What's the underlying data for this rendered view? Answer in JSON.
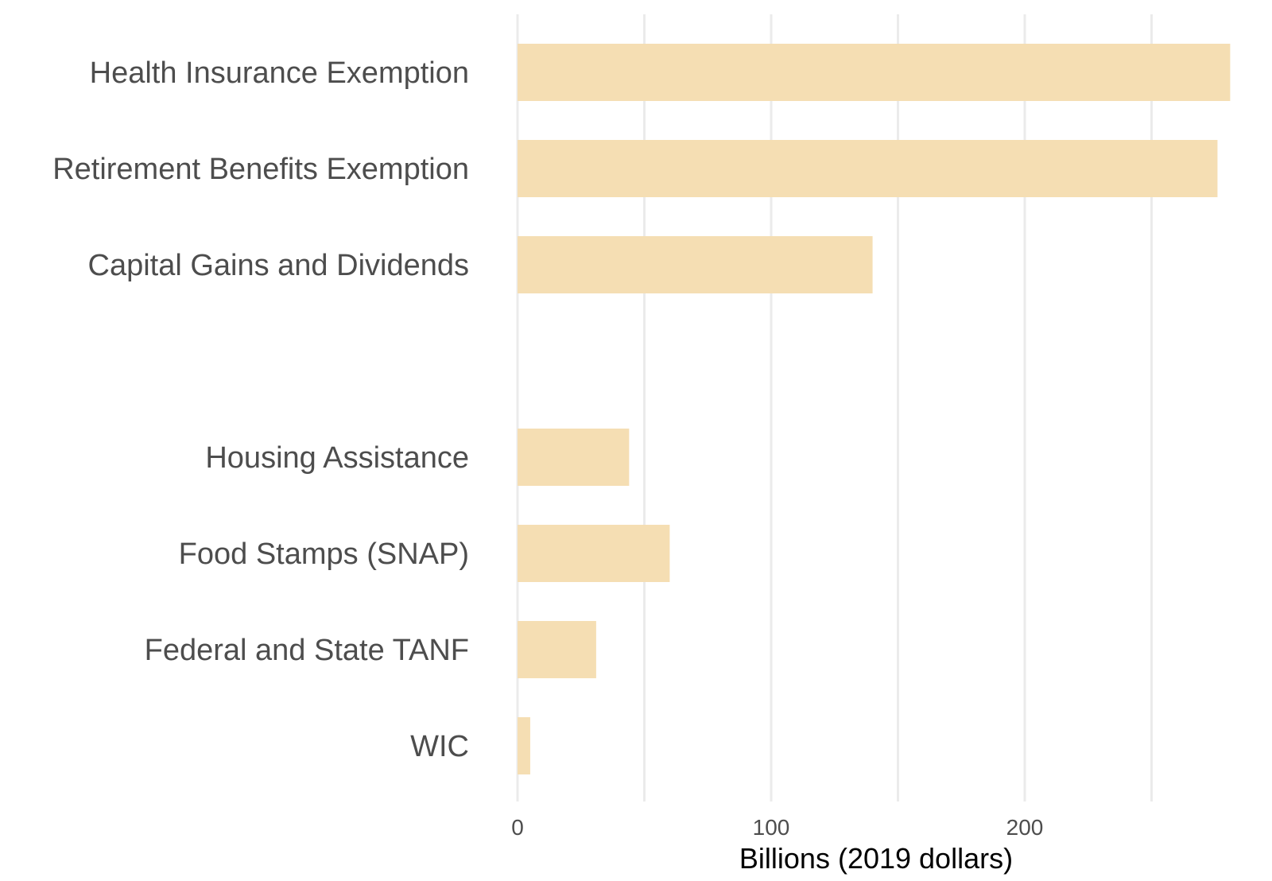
{
  "chart_data": {
    "type": "bar",
    "orientation": "horizontal",
    "title": "",
    "xlabel": "Billions (2019 dollars)",
    "ylabel": "",
    "xlim": [
      0,
      285
    ],
    "x_ticks": [
      0,
      100,
      200
    ],
    "x_tick_labels": [
      "0",
      "100",
      "200"
    ],
    "minor_gridlines": [
      50,
      150,
      250
    ],
    "grid": true,
    "legend": "none",
    "bar_color": "#f5deb3",
    "grid_color": "#ebebeb",
    "categories": [
      "Health Insurance Exemption",
      "Retirement Benefits Exemption",
      "Capital Gains and Dividends",
      "",
      "Housing Assistance",
      "Food Stamps (SNAP)",
      "Federal and State TANF",
      "WIC"
    ],
    "values": [
      281,
      276,
      140,
      null,
      44,
      60,
      31,
      5
    ]
  }
}
